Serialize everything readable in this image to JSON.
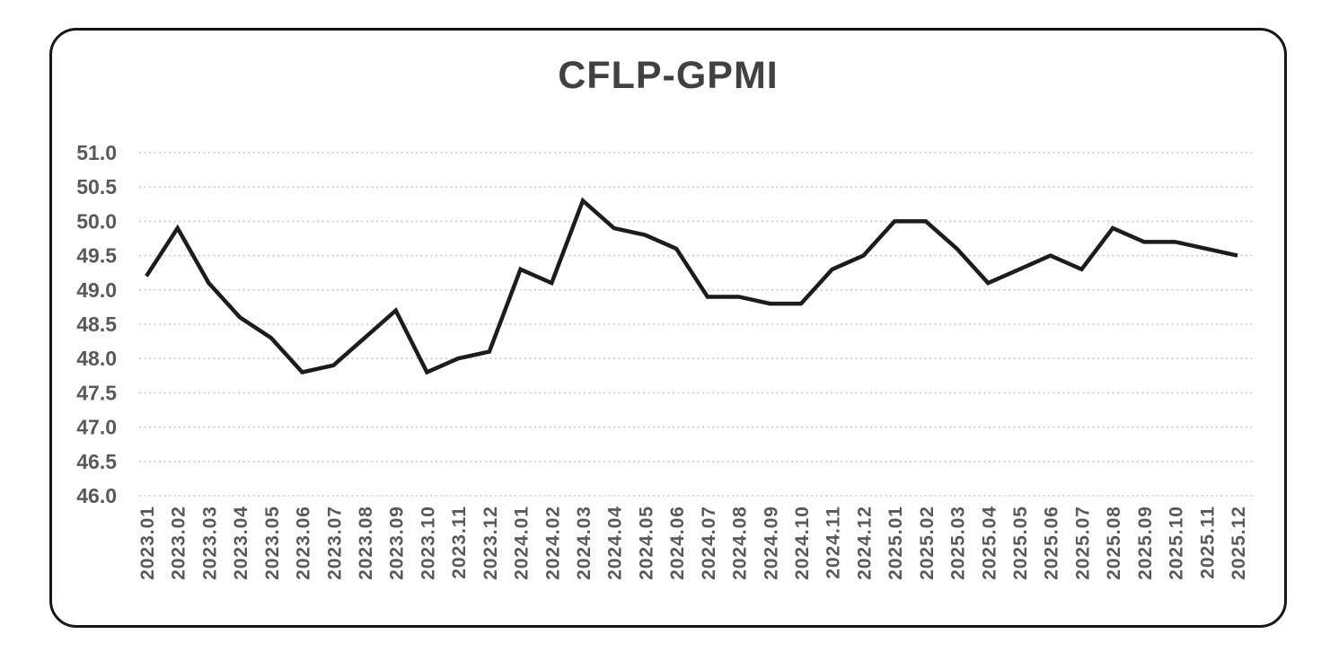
{
  "chart_data": {
    "type": "line",
    "title": "CFLP-GPMI",
    "categories": [
      "2023.01",
      "2023.02",
      "2023.03",
      "2023.04",
      "2023.05",
      "2023.06",
      "2023.07",
      "2023.08",
      "2023.09",
      "2023.10",
      "2023.11",
      "2023.12",
      "2024.01",
      "2024.02",
      "2024.03",
      "2024.04",
      "2024.05",
      "2024.06",
      "2024.07",
      "2024.08",
      "2024.09",
      "2024.10",
      "2024.11",
      "2024.12",
      "2025.01",
      "2025.02",
      "2025.03",
      "2025.04",
      "2025.05",
      "2025.06",
      "2025.07",
      "2025.08",
      "2025.09",
      "2025.10",
      "2025.11",
      "2025.12"
    ],
    "values": [
      49.2,
      49.9,
      49.1,
      48.6,
      48.3,
      47.8,
      47.9,
      48.3,
      48.7,
      47.8,
      48.0,
      48.1,
      49.3,
      49.1,
      50.3,
      49.9,
      49.8,
      49.6,
      48.9,
      48.9,
      48.8,
      48.8,
      49.3,
      49.5,
      50.0,
      50.0,
      49.6,
      49.1,
      49.3,
      49.5,
      49.3,
      49.9,
      49.7,
      49.7,
      49.6,
      49.5
    ],
    "xlabel": "",
    "ylabel": "",
    "ylim": [
      46.0,
      51.0
    ],
    "ytick_step": 0.5,
    "ytick_labels": [
      "51.0",
      "50.5",
      "50.0",
      "49.5",
      "49.0",
      "48.5",
      "48.0",
      "47.5",
      "47.0",
      "46.5",
      "46.0"
    ],
    "grid": "horizontal-dotted",
    "legend_position": "none",
    "colors": {
      "line": "#1c1c1c",
      "grid": "#c9c9c9",
      "tick_label": "#595959",
      "title": "#414141",
      "frame_border": "#161616",
      "background": "#ffffff"
    }
  }
}
